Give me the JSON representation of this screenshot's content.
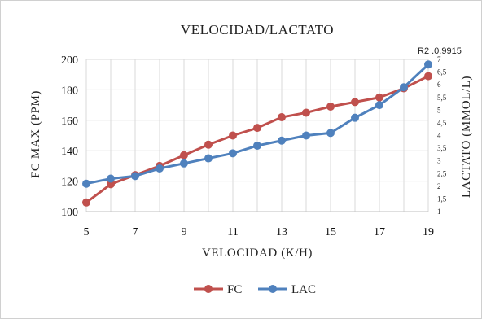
{
  "chart_data": {
    "type": "line",
    "title": "VELOCIDAD/LACTATO",
    "annotation": "R2 .0.9915",
    "xlabel": "VELOCIDAD (K/H)",
    "ylabel_left": "FC MAX (PPM)",
    "ylabel_right": "LACTATO (MMOL/L)",
    "x": [
      5,
      6,
      7,
      8,
      9,
      10,
      11,
      12,
      13,
      14,
      15,
      16,
      17,
      18,
      19
    ],
    "xticks": [
      "5",
      "7",
      "9",
      "11",
      "13",
      "15",
      "17",
      "19"
    ],
    "xlim": [
      5,
      19
    ],
    "ylim_left": [
      100,
      200
    ],
    "yticks_left": [
      "100",
      "120",
      "140",
      "160",
      "180",
      "200"
    ],
    "ylim_right": [
      1,
      7
    ],
    "yticks_right": [
      "1",
      "1,5",
      "2",
      "2,5",
      "3",
      "3,5",
      "4",
      "4,5",
      "5",
      "5,5",
      "6",
      "6,5",
      "7"
    ],
    "grid": true,
    "legend_position": "bottom",
    "series": [
      {
        "name": "FC",
        "axis": "left",
        "color": "#c0504d",
        "values": [
          106,
          118,
          124,
          130,
          137,
          144,
          150,
          155,
          162,
          165,
          169,
          172,
          175,
          181,
          189
        ]
      },
      {
        "name": "LAC",
        "axis": "right",
        "color": "#4f81bd",
        "values": [
          2.1,
          2.3,
          2.4,
          2.7,
          2.9,
          3.1,
          3.3,
          3.6,
          3.8,
          4.0,
          4.1,
          4.7,
          5.2,
          5.9,
          6.8
        ]
      }
    ]
  }
}
